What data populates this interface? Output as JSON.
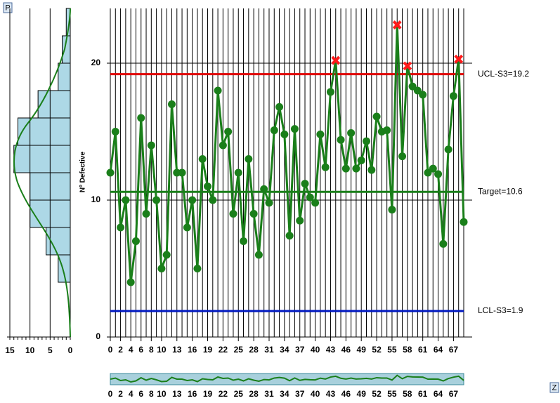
{
  "buttons": {
    "top": "P",
    "bottom": "Z"
  },
  "chart_data": [
    {
      "type": "line",
      "ylabel": "Nº Defective",
      "x": [
        0,
        1,
        2,
        3,
        4,
        5,
        6,
        7,
        8,
        9,
        10,
        11,
        12,
        13,
        14,
        15,
        16,
        17,
        18,
        19,
        20,
        21,
        22,
        23,
        24,
        25,
        26,
        27,
        28,
        29,
        30,
        31,
        32,
        33,
        34,
        35,
        36,
        37,
        38,
        39,
        40,
        41,
        42,
        43,
        44,
        45,
        46,
        47,
        48,
        49,
        50,
        51,
        52,
        53,
        54,
        55,
        56,
        57,
        58,
        59,
        60,
        61,
        62,
        63,
        64,
        65,
        66,
        67,
        68,
        69
      ],
      "series": [
        {
          "color": "#1a7f1a",
          "values": [
            12,
            15,
            8,
            10,
            4,
            7,
            16,
            9,
            14,
            10,
            5,
            6,
            17,
            12,
            12,
            8,
            10,
            5,
            13,
            11,
            10,
            18,
            14,
            15,
            9,
            12,
            7,
            13,
            9,
            6,
            10.8,
            9.8,
            15.1,
            16.8,
            14.8,
            7.4,
            15.2,
            8.5,
            11.2,
            10.2,
            9.8,
            14.8,
            12.4,
            17.9,
            20.2,
            14.4,
            12.3,
            14.9,
            12.3,
            12.9,
            14.3,
            12.2,
            16.1,
            15,
            15.1,
            9.3,
            22.8,
            13.2,
            19.8,
            18.3,
            18,
            17.7,
            12,
            12.3,
            11.9,
            6.8,
            13.7,
            17.6,
            20.3,
            8.4
          ]
        }
      ],
      "out_of_control_color": "#ff1a1a",
      "xlim": [
        0,
        69
      ],
      "xticks": [
        0,
        2,
        4,
        6,
        8,
        10,
        13,
        16,
        19,
        22,
        25,
        28,
        31,
        34,
        37,
        40,
        43,
        46,
        49,
        52,
        55,
        58,
        61,
        64,
        67
      ],
      "ylim": [
        0,
        24
      ],
      "yticks": [
        0,
        10,
        20
      ],
      "annotations": [
        {
          "value": 19.2,
          "label": "UCL-S3=19.2",
          "color": "#e00000"
        },
        {
          "value": 10.6,
          "label": "Target=10.6",
          "color": "#1a7f1a"
        },
        {
          "value": 1.9,
          "label": "LCL-S3=1.9",
          "color": "#0018c0"
        }
      ],
      "grid": true
    },
    {
      "type": "histogram",
      "orientation": "horizontal",
      "color": "#add8e6",
      "bins": [
        4,
        6,
        8,
        10,
        12,
        14,
        16,
        18,
        20,
        22,
        24
      ],
      "values": [
        3,
        6,
        10,
        10,
        14,
        13,
        8,
        3,
        2,
        1
      ],
      "xlim": [
        15,
        0
      ],
      "xticks": [
        15,
        10,
        5,
        0
      ],
      "ylim": [
        0,
        24
      ]
    }
  ]
}
